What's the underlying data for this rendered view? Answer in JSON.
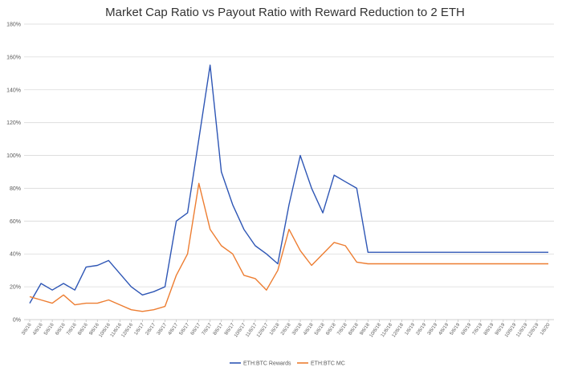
{
  "colors": {
    "rewards": "#2e56b5",
    "mc": "#ed7d31",
    "grid": "#d9d9d9",
    "text": "#595959"
  },
  "chart_data": {
    "type": "line",
    "title": "Market Cap Ratio vs Payout Ratio with Reward Reduction to 2 ETH",
    "xlabel": "",
    "ylabel": "",
    "ylim": [
      0,
      180
    ],
    "yticks": [
      "0%",
      "20%",
      "40%",
      "60%",
      "80%",
      "100%",
      "120%",
      "140%",
      "160%",
      "180%"
    ],
    "grid": "horizontal",
    "legend_position": "bottom",
    "x": [
      "3/6/16",
      "4/6/16",
      "5/6/16",
      "6/6/16",
      "7/6/16",
      "8/6/16",
      "9/6/16",
      "10/6/16",
      "11/6/16",
      "12/6/16",
      "1/6/17",
      "2/6/17",
      "3/6/17",
      "4/6/17",
      "5/6/17",
      "6/6/17",
      "7/6/17",
      "8/6/17",
      "9/6/17",
      "10/6/17",
      "11/6/17",
      "12/6/17",
      "1/6/18",
      "2/6/18",
      "3/6/18",
      "4/6/18",
      "5/6/18",
      "6/6/18",
      "7/6/18",
      "8/6/18",
      "9/6/18",
      "10/6/18",
      "11/6/18",
      "12/6/18",
      "1/6/19",
      "2/6/19",
      "3/6/19",
      "4/6/19",
      "5/6/19",
      "6/6/19",
      "7/6/19",
      "8/6/19",
      "9/6/19",
      "10/6/19",
      "11/6/19",
      "12/6/19",
      "1/6/20"
    ],
    "series": [
      {
        "name": "ETH:BTC Rewards",
        "values": [
          10,
          22,
          18,
          22,
          18,
          32,
          33,
          36,
          28,
          20,
          15,
          17,
          20,
          60,
          65,
          110,
          155,
          90,
          70,
          55,
          45,
          40,
          34,
          70,
          100,
          80,
          65,
          88,
          84,
          80,
          41,
          41,
          41,
          41,
          41,
          41,
          41,
          41,
          41,
          41,
          41,
          41,
          41,
          41,
          41,
          41,
          41
        ]
      },
      {
        "name": "ETH:BTC MC",
        "values": [
          14,
          12,
          10,
          15,
          9,
          10,
          10,
          12,
          9,
          6,
          5,
          6,
          8,
          27,
          40,
          83,
          55,
          45,
          40,
          27,
          25,
          18,
          30,
          55,
          42,
          33,
          40,
          47,
          45,
          35,
          34,
          34,
          34,
          34,
          34,
          34,
          34,
          34,
          34,
          34,
          34,
          34,
          34,
          34,
          34,
          34,
          34
        ]
      }
    ]
  }
}
